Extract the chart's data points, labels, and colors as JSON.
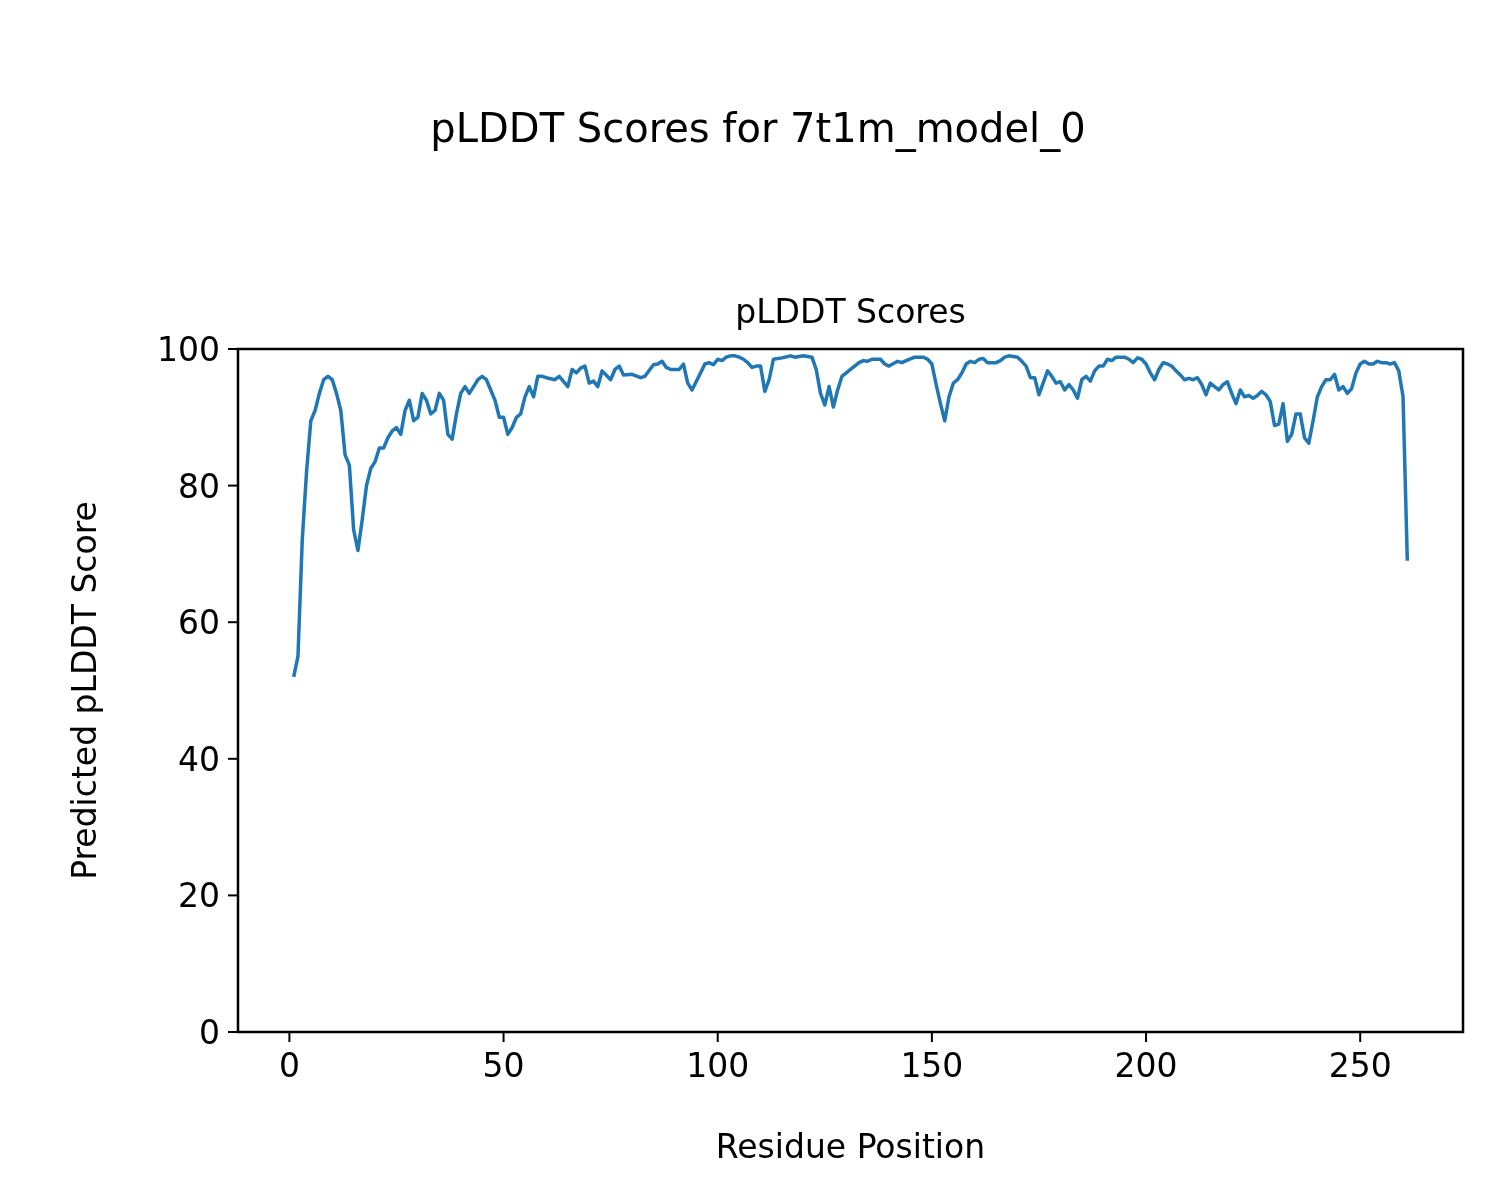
{
  "chart_data": {
    "type": "line",
    "title": "pLDDT Scores for 7t1m_model_0",
    "subtitle": "pLDDT Scores",
    "xlabel": "Residue Position",
    "ylabel": "Predicted pLDDT Score",
    "xlim": [
      -12,
      274
    ],
    "xticks": [
      0,
      50,
      100,
      150,
      200,
      250
    ],
    "ylim": [
      0,
      100
    ],
    "yticks": [
      0,
      20,
      40,
      60,
      80,
      100
    ],
    "grid": false,
    "series": [
      {
        "color": "#1f77b4",
        "x": [
          1,
          2,
          3,
          4,
          5,
          6,
          7,
          8,
          9,
          10,
          11,
          12,
          13,
          14,
          15,
          16,
          17,
          18,
          19,
          20,
          21,
          22,
          23,
          24,
          25,
          26,
          27,
          28,
          29,
          30,
          31,
          32,
          33,
          34,
          35,
          36,
          37,
          38,
          39,
          40,
          41,
          42,
          43,
          44,
          45,
          46,
          47,
          48,
          49,
          50,
          51,
          52,
          53,
          54,
          55,
          56,
          57,
          58,
          59,
          60,
          62,
          63,
          65,
          66,
          67,
          68,
          69,
          70,
          71,
          72,
          73,
          75,
          76,
          77,
          78,
          80,
          82,
          83,
          85,
          86,
          87,
          88,
          89,
          91,
          92,
          93,
          94,
          96,
          97,
          98,
          99,
          100,
          101,
          102,
          103,
          104,
          105,
          106,
          107,
          108,
          109,
          110,
          111,
          112,
          113,
          115,
          117,
          118,
          120,
          122,
          123,
          124,
          125,
          126,
          127,
          128,
          129,
          131,
          133,
          134,
          135,
          136,
          138,
          139,
          140,
          142,
          143,
          144,
          146,
          148,
          149,
          150,
          151,
          152,
          153,
          154,
          155,
          156,
          157,
          158,
          159,
          160,
          161,
          162,
          163,
          165,
          166,
          167,
          168,
          170,
          171,
          172,
          173,
          174,
          175,
          177,
          178,
          179,
          180,
          181,
          182,
          183,
          184,
          185,
          186,
          187,
          188,
          189,
          190,
          191,
          192,
          193,
          195,
          196,
          197,
          198,
          199,
          200,
          201,
          202,
          203,
          204,
          205,
          206,
          207,
          208,
          209,
          210,
          211,
          212,
          213,
          214,
          215,
          216,
          217,
          218,
          219,
          220,
          221,
          222,
          223,
          224,
          225,
          226,
          227,
          228,
          229,
          230,
          231,
          232,
          233,
          234,
          235,
          236,
          237,
          238,
          239,
          240,
          241,
          242,
          243,
          244,
          245,
          246,
          247,
          248,
          249,
          250,
          251,
          252,
          253,
          254,
          255,
          256,
          257,
          258,
          259,
          260,
          261
        ],
        "values": [
          52,
          55,
          72,
          82,
          89.5,
          91,
          93.5,
          95.5,
          96,
          95.5,
          93.5,
          91,
          84.5,
          83,
          73.5,
          70.5,
          75,
          80,
          82.5,
          83.5,
          85.5,
          85.5,
          87,
          88,
          88.5,
          87.5,
          91,
          92.5,
          89.5,
          90,
          93.5,
          92.5,
          90.5,
          91,
          93.5,
          92.5,
          87.5,
          86.8,
          90.5,
          93.5,
          94.5,
          93.5,
          94.5,
          95.5,
          96,
          95.5,
          94,
          92.5,
          90,
          90,
          87.5,
          88.5,
          90,
          90.5,
          93,
          94.5,
          93,
          96,
          96,
          95.8,
          95.5,
          96,
          94.5,
          97,
          96.5,
          97.2,
          97.5,
          95,
          95.3,
          94.5,
          96.8,
          95.5,
          97,
          97.5,
          96.2,
          96.3,
          95.8,
          96,
          97.7,
          97.8,
          98.2,
          97.3,
          97,
          97,
          97.8,
          95,
          94,
          96.5,
          97.8,
          98,
          97.7,
          98.5,
          98.3,
          98.8,
          99,
          99,
          98.8,
          98.5,
          98,
          97.3,
          97.5,
          97.5,
          93.8,
          95.5,
          98.5,
          98.7,
          99,
          98.8,
          99,
          98.8,
          97,
          93.5,
          91.8,
          94.5,
          91.5,
          94,
          96,
          97,
          98,
          98.3,
          98.2,
          98.5,
          98.5,
          97.8,
          97.5,
          98.2,
          98,
          98.3,
          98.8,
          98.8,
          98.5,
          97.8,
          94.8,
          92,
          89.5,
          93,
          95,
          95.5,
          96.5,
          97.8,
          98.2,
          98,
          98.5,
          98.6,
          98,
          98,
          98.3,
          98.8,
          99,
          98.8,
          98.2,
          97.5,
          95.8,
          95.8,
          93.3,
          96.8,
          96,
          95,
          95.2,
          94,
          94.8,
          94,
          92.8,
          95.5,
          96,
          95.3,
          96.8,
          97.5,
          97.5,
          98.5,
          98.3,
          98.8,
          98.8,
          98.5,
          98,
          98.7,
          98.5,
          97.8,
          96.5,
          95.5,
          97,
          98,
          97.8,
          97.5,
          96.8,
          96.2,
          95.5,
          95.7,
          95.5,
          95.8,
          94.8,
          93.3,
          95,
          94.5,
          94,
          94.8,
          95.2,
          93.5,
          92,
          94,
          93,
          93.2,
          92.8,
          93.2,
          93.8,
          93.3,
          92.3,
          88.8,
          89,
          92,
          86.5,
          87.5,
          90.5,
          90.5,
          87,
          86.2,
          89.5,
          93,
          94.5,
          95.5,
          95.5,
          96.3,
          94,
          94.5,
          93.5,
          94.2,
          96.5,
          97.8,
          98.2,
          97.8,
          97.8,
          98.2,
          98,
          98,
          97.8,
          98,
          96.8,
          93,
          69
        ]
      }
    ]
  }
}
